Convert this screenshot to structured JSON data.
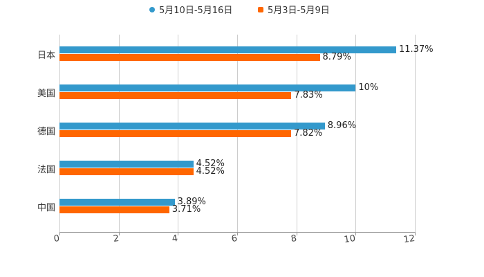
{
  "chart_data": {
    "type": "bar",
    "orientation": "horizontal",
    "title": "",
    "xlabel": "",
    "ylabel": "",
    "categories": [
      "日本",
      "美国",
      "德国",
      "法国",
      "中国"
    ],
    "series": [
      {
        "name": "5月10日-5月16日",
        "color": "#3399cc",
        "values": [
          11.37,
          10,
          8.96,
          4.52,
          3.89
        ],
        "labels": [
          "11.37%",
          "10%",
          "8.96%",
          "4.52%",
          "3.89%"
        ]
      },
      {
        "name": "5月3日-5月9日",
        "color": "#ff6600",
        "values": [
          8.79,
          7.83,
          7.82,
          4.52,
          3.71
        ],
        "labels": [
          "8.79%",
          "7.83%",
          "7.82%",
          "4.52%",
          "3.71%"
        ]
      }
    ],
    "xlim": [
      0,
      12
    ],
    "xticks": [
      "0",
      "2",
      "4",
      "6",
      "8",
      "10",
      "12"
    ],
    "grid": true,
    "legend_position": "top"
  },
  "legend": {
    "items": [
      {
        "label": "5月10日-5月16日",
        "color": "#3399cc",
        "marker": "circle"
      },
      {
        "label": "5月3日-5月9日",
        "color": "#ff6600",
        "marker": "square"
      }
    ]
  }
}
